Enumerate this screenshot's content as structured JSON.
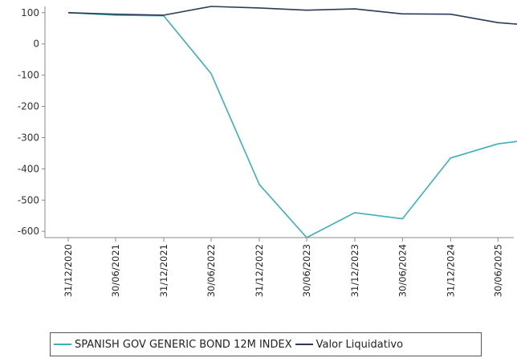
{
  "chart_data": {
    "type": "line",
    "title": "",
    "xlabel": "",
    "ylabel": "",
    "ylim": [
      -620,
      120
    ],
    "yticks": [
      100,
      0,
      -100,
      -200,
      -300,
      -400,
      -500,
      -600
    ],
    "x": [
      "31/12/2020",
      "30/06/2021",
      "31/12/2021",
      "30/06/2022",
      "31/12/2022",
      "30/06/2023",
      "31/12/2023",
      "30/06/2024",
      "31/12/2024",
      "30/06/2025"
    ],
    "series": [
      {
        "name": "SPANISH GOV GENERIC BOND 12M INDEX",
        "color": "#3bb0b8",
        "x": [
          "2020-12-31",
          "2021-06-30",
          "2021-12-31",
          "2022-06-30",
          "2022-12-31",
          "2023-06-30",
          "2023-12-31",
          "2024-06-30",
          "2024-12-31",
          "2025-06-30",
          "2025-09-30"
        ],
        "values": [
          100,
          92,
          90,
          -95,
          -450,
          -620,
          -540,
          -560,
          -365,
          -320,
          -310
        ]
      },
      {
        "name": "Valor Liquidativo",
        "color": "#2b3a55",
        "x": [
          "2020-12-31",
          "2021-06-30",
          "2021-12-31",
          "2022-06-30",
          "2022-12-31",
          "2023-06-30",
          "2023-12-31",
          "2024-06-30",
          "2024-12-31",
          "2025-06-30",
          "2025-09-30"
        ],
        "values": [
          100,
          95,
          92,
          120,
          115,
          108,
          112,
          96,
          95,
          68,
          62
        ]
      }
    ],
    "grid": false,
    "legend": "bottom"
  }
}
